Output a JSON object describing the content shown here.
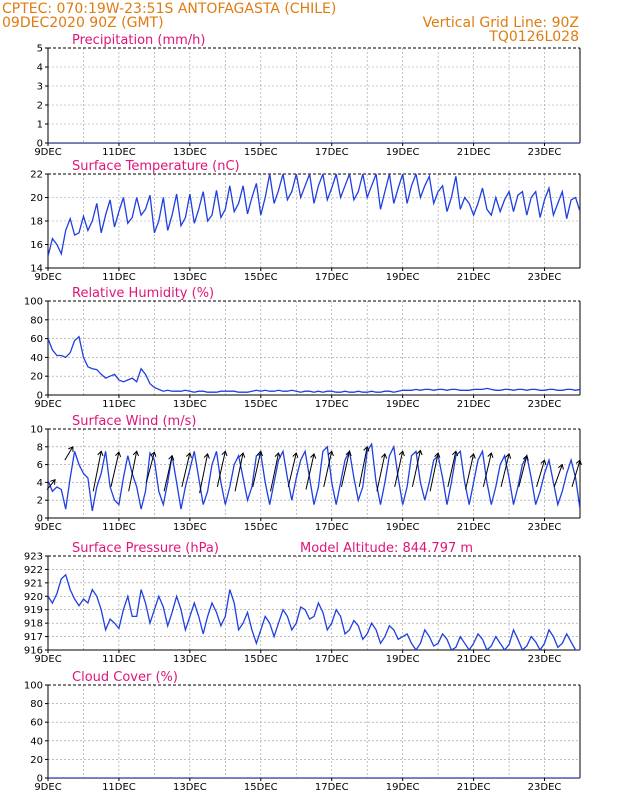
{
  "header": {
    "line1_left": "CPTEC:   070:19W-23:51S  ANTOFAGASTA (CHILE)",
    "line2_left": "09DEC2020 90Z (GMT)",
    "line1_right": "Vertical Grid Line: 90Z",
    "line2_right": "TQ0126L028"
  },
  "colors": {
    "series": "#1f3fe0",
    "title": "#e0147a",
    "header": "#e07b10"
  },
  "x_labels": [
    "9DEC",
    "11DEC",
    "13DEC",
    "15DEC",
    "17DEC",
    "19DEC",
    "21DEC",
    "23DEC"
  ],
  "chart_data": [
    {
      "type": "line",
      "title": "Precipitation (mm/h)",
      "ylim": [
        0,
        5
      ],
      "yticks": [
        0,
        1,
        2,
        3,
        4,
        5
      ],
      "x": [
        9,
        24
      ],
      "series": [
        {
          "values": [
            0,
            0
          ]
        }
      ]
    },
    {
      "type": "line",
      "title": "Surface Temperature (nC)",
      "ylim": [
        14,
        22
      ],
      "yticks": [
        14,
        16,
        18,
        20,
        22
      ],
      "x_step_days": 0.125,
      "series": [
        {
          "values": [
            15.0,
            16.5,
            16.0,
            15.2,
            17.2,
            18.2,
            16.8,
            17.0,
            18.4,
            17.2,
            18.0,
            19.5,
            17.0,
            18.5,
            19.8,
            17.5,
            18.8,
            20.0,
            17.8,
            18.3,
            20.0,
            18.5,
            19.0,
            20.2,
            17.0,
            18.0,
            20.0,
            17.2,
            18.5,
            20.3,
            17.6,
            18.3,
            20.3,
            17.8,
            19.0,
            20.5,
            18.0,
            18.5,
            20.6,
            18.3,
            19.0,
            21.0,
            18.8,
            19.5,
            21.0,
            18.6,
            20.0,
            21.2,
            18.5,
            20.0,
            22.0,
            19.5,
            20.6,
            22.0,
            19.8,
            20.5,
            22.0,
            20.0,
            21.0,
            22.0,
            19.5,
            21.0,
            22.0,
            19.8,
            20.8,
            22.0,
            20.0,
            21.0,
            22.0,
            19.8,
            20.5,
            22.0,
            20.0,
            21.0,
            22.0,
            19.0,
            20.5,
            22.0,
            19.5,
            20.8,
            22.0,
            19.5,
            21.0,
            22.0,
            20.0,
            21.0,
            21.8,
            19.5,
            20.5,
            21.0,
            18.8,
            20.0,
            21.8,
            19.0,
            20.0,
            19.5,
            18.5,
            19.5,
            20.8,
            19.0,
            18.5,
            20.0,
            18.8,
            19.8,
            20.5,
            18.8,
            20.2,
            20.5,
            18.5,
            20.0,
            20.5,
            18.3,
            19.8,
            20.8,
            18.5,
            19.5,
            20.5,
            18.2,
            19.8,
            20.0,
            18.8
          ]
        }
      ]
    },
    {
      "type": "line",
      "title": "Relative Humidity (%)",
      "ylim": [
        0,
        100
      ],
      "yticks": [
        0,
        20,
        40,
        60,
        80,
        100
      ],
      "x_step_days": 0.125,
      "series": [
        {
          "values": [
            60,
            48,
            42,
            42,
            40,
            45,
            58,
            62,
            40,
            30,
            28,
            27,
            22,
            18,
            20,
            22,
            16,
            14,
            16,
            18,
            14,
            28,
            22,
            12,
            8,
            6,
            4,
            5,
            4,
            4,
            4,
            5,
            4,
            3,
            4,
            4,
            3,
            3,
            3,
            4,
            4,
            4,
            4,
            3,
            3,
            3,
            4,
            5,
            4,
            5,
            4,
            4,
            5,
            4,
            4,
            5,
            4,
            3,
            4,
            4,
            3,
            4,
            3,
            4,
            4,
            3,
            3,
            4,
            3,
            3,
            4,
            3,
            3,
            4,
            3,
            3,
            4,
            4,
            3,
            4,
            5,
            5,
            5,
            6,
            5,
            6,
            6,
            5,
            6,
            6,
            5,
            6,
            6,
            5,
            5,
            5,
            6,
            6,
            6,
            7,
            6,
            5,
            5,
            6,
            6,
            5,
            6,
            6,
            5,
            6,
            6,
            5,
            5,
            6,
            6,
            5,
            5,
            6,
            6,
            5,
            6
          ]
        }
      ]
    },
    {
      "type": "line",
      "title": "Surface Wind (m/s)",
      "ylim": [
        0,
        10
      ],
      "yticks": [
        0,
        2,
        4,
        6,
        8,
        10
      ],
      "x_step_days": 0.125,
      "series": [
        {
          "values": [
            4.2,
            3.0,
            3.5,
            3.2,
            1.0,
            4.5,
            7.5,
            6.0,
            5.0,
            4.5,
            0.8,
            3.5,
            5.0,
            7.5,
            3.5,
            2.0,
            1.5,
            4.5,
            7.0,
            5.0,
            3.5,
            1.0,
            3.0,
            7.3,
            6.5,
            3.0,
            1.5,
            4.0,
            7.0,
            4.0,
            1.0,
            3.5,
            5.5,
            7.5,
            4.5,
            1.5,
            3.0,
            6.0,
            7.5,
            4.0,
            1.5,
            3.5,
            6.0,
            7.0,
            4.5,
            2.0,
            3.5,
            7.0,
            7.2,
            4.0,
            1.5,
            4.0,
            6.5,
            7.5,
            4.5,
            2.0,
            4.5,
            6.5,
            7.5,
            4.5,
            1.5,
            3.5,
            7.5,
            8.0,
            4.0,
            1.5,
            4.0,
            6.5,
            7.5,
            4.5,
            2.0,
            3.5,
            7.5,
            8.3,
            4.0,
            1.5,
            4.0,
            7.0,
            8.0,
            4.5,
            1.5,
            3.5,
            7.0,
            7.5,
            4.0,
            2.0,
            4.0,
            6.5,
            7.0,
            4.5,
            1.5,
            4.0,
            7.0,
            7.5,
            4.0,
            1.5,
            4.0,
            6.5,
            7.5,
            4.0,
            1.5,
            3.5,
            6.0,
            7.0,
            4.5,
            1.5,
            3.5,
            6.0,
            7.0,
            4.5,
            1.5,
            3.0,
            5.0,
            6.5,
            4.0,
            1.5,
            3.0,
            5.0,
            6.5,
            4.5,
            1.0
          ]
        }
      ],
      "vectors_every_days": 0.5,
      "vectors": [
        [
          9.2,
          3.2,
          4.3
        ],
        [
          9.7,
          6.5,
          8.0
        ],
        [
          10.5,
          3.0,
          7.5
        ],
        [
          11.0,
          3.5,
          7.4
        ],
        [
          11.5,
          3.0,
          7.5
        ],
        [
          12.0,
          4.0,
          7.4
        ],
        [
          12.5,
          3.0,
          7.0
        ],
        [
          13.0,
          3.5,
          7.3
        ],
        [
          13.5,
          2.8,
          7.2
        ],
        [
          14.0,
          3.5,
          7.5
        ],
        [
          14.5,
          3.0,
          7.3
        ],
        [
          15.0,
          3.5,
          7.5
        ],
        [
          15.5,
          3.0,
          7.3
        ],
        [
          16.0,
          3.5,
          7.3
        ],
        [
          16.5,
          3.2,
          7.2
        ],
        [
          17.0,
          3.5,
          7.5
        ],
        [
          17.5,
          3.5,
          7.5
        ],
        [
          18.0,
          3.5,
          8.0
        ],
        [
          18.5,
          3.0,
          7.2
        ],
        [
          19.0,
          3.5,
          7.5
        ],
        [
          19.5,
          3.5,
          7.6
        ],
        [
          20.0,
          3.0,
          7.3
        ],
        [
          20.5,
          3.5,
          7.5
        ],
        [
          21.0,
          3.2,
          7.2
        ],
        [
          21.5,
          3.5,
          7.3
        ],
        [
          22.0,
          3.5,
          7.2
        ],
        [
          22.5,
          3.5,
          7.0
        ],
        [
          23.0,
          3.5,
          6.5
        ],
        [
          23.5,
          3.5,
          6.0
        ],
        [
          24.0,
          3.5,
          6.5
        ]
      ]
    },
    {
      "type": "line",
      "title": "Surface Pressure (hPa)",
      "annotation": "Model Altitude: 844.797 m",
      "ylim": [
        916,
        923
      ],
      "yticks": [
        916,
        917,
        918,
        919,
        920,
        921,
        922,
        923
      ],
      "x_step_days": 0.125,
      "series": [
        {
          "values": [
            920.0,
            919.5,
            920.2,
            921.3,
            921.6,
            920.5,
            919.8,
            919.3,
            919.8,
            919.5,
            920.5,
            920.0,
            919.0,
            917.5,
            918.3,
            918.0,
            917.6,
            919.0,
            920.0,
            918.5,
            918.5,
            920.5,
            919.5,
            918.0,
            919.0,
            920.0,
            919.2,
            917.8,
            918.8,
            920.0,
            919.0,
            917.5,
            918.5,
            919.5,
            918.5,
            917.2,
            918.5,
            919.5,
            918.8,
            917.8,
            918.5,
            920.5,
            919.5,
            917.5,
            918.0,
            918.8,
            917.5,
            916.5,
            917.5,
            918.5,
            918.0,
            917.0,
            918.0,
            919.0,
            918.5,
            917.5,
            918.0,
            919.2,
            919.0,
            918.3,
            918.5,
            919.5,
            918.8,
            917.5,
            918.0,
            919.0,
            918.5,
            917.2,
            917.5,
            918.2,
            917.8,
            916.8,
            917.2,
            918.0,
            917.5,
            916.5,
            917.0,
            917.8,
            917.5,
            916.8,
            917.0,
            917.2,
            916.5,
            916.0,
            916.5,
            917.5,
            917.0,
            916.3,
            916.5,
            917.2,
            916.8,
            916.0,
            916.2,
            917.0,
            916.5,
            916.0,
            916.5,
            917.2,
            916.8,
            916.0,
            916.3,
            917.0,
            916.5,
            916.0,
            916.4,
            917.5,
            916.8,
            916.0,
            916.3,
            917.0,
            916.6,
            916.0,
            916.5,
            917.5,
            917.0,
            916.2,
            916.5,
            917.2,
            916.6,
            916.0,
            916.0
          ]
        }
      ]
    },
    {
      "type": "line",
      "title": "Cloud Cover (%)",
      "ylim": [
        0,
        100
      ],
      "yticks": [
        0,
        20,
        40,
        60,
        80,
        100
      ],
      "x": [
        9,
        24
      ],
      "series": [
        {
          "values": [
            0,
            0
          ]
        }
      ]
    }
  ]
}
